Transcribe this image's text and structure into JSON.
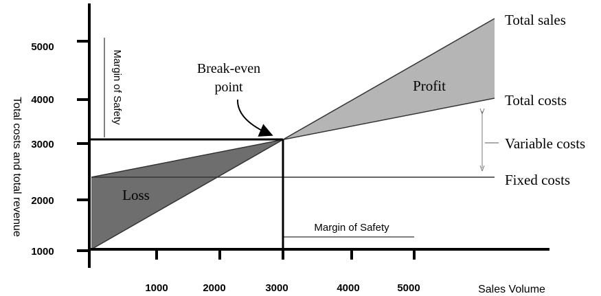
{
  "chart": {
    "y_axis_title": "Total costs and total revenue",
    "x_axis_title": "Sales Volume",
    "y_ticks": [
      5000,
      4000,
      3000,
      2000,
      1000
    ],
    "x_ticks": [
      1000,
      2000,
      3000,
      4000,
      5000
    ],
    "lines": {
      "total_sales": "Total sales",
      "total_costs": "Total costs",
      "variable_costs": "Variable costs",
      "fixed_costs": "Fixed costs"
    },
    "regions": {
      "profit": "Profit",
      "loss": "Loss"
    },
    "break_even": [
      "Break-even",
      "point"
    ],
    "margin_of_safety_vertical": "Margin of Safety",
    "margin_of_safety_horizontal": "Margin of Safety"
  }
}
